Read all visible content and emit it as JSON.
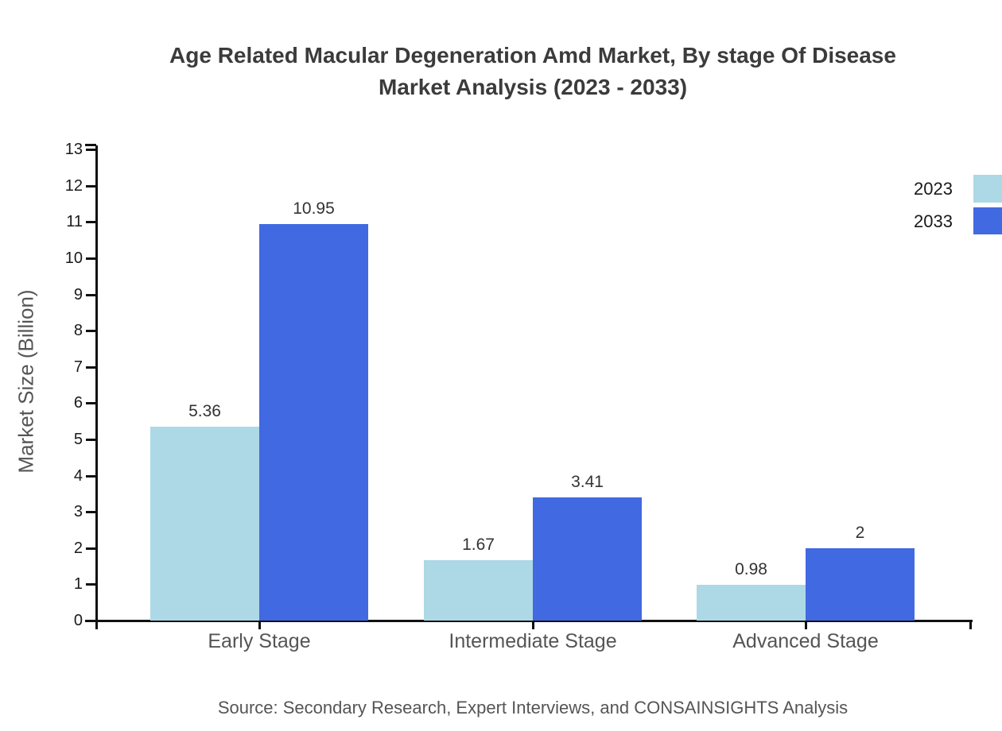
{
  "chart_data": {
    "type": "bar",
    "title_line1": "Age Related Macular Degeneration Amd Market, By stage Of Disease",
    "title_line2": "Market Analysis (2023 - 2033)",
    "ylabel": "Market Size (Billion)",
    "categories": [
      "Early Stage",
      "Intermediate Stage",
      "Advanced Stage"
    ],
    "series": [
      {
        "name": "2023",
        "color": "#ADD8E6",
        "values": [
          5.36,
          1.67,
          0.98
        ]
      },
      {
        "name": "2033",
        "color": "#4169E1",
        "values": [
          10.95,
          3.41,
          2
        ]
      }
    ],
    "ylim": [
      0,
      13
    ],
    "ytick_step": 1,
    "grid": false,
    "legend_position": "top-right",
    "axis_color": "#111111",
    "source": "Source: Secondary Research, Expert Interviews, and CONSAINSIGHTS Analysis"
  }
}
